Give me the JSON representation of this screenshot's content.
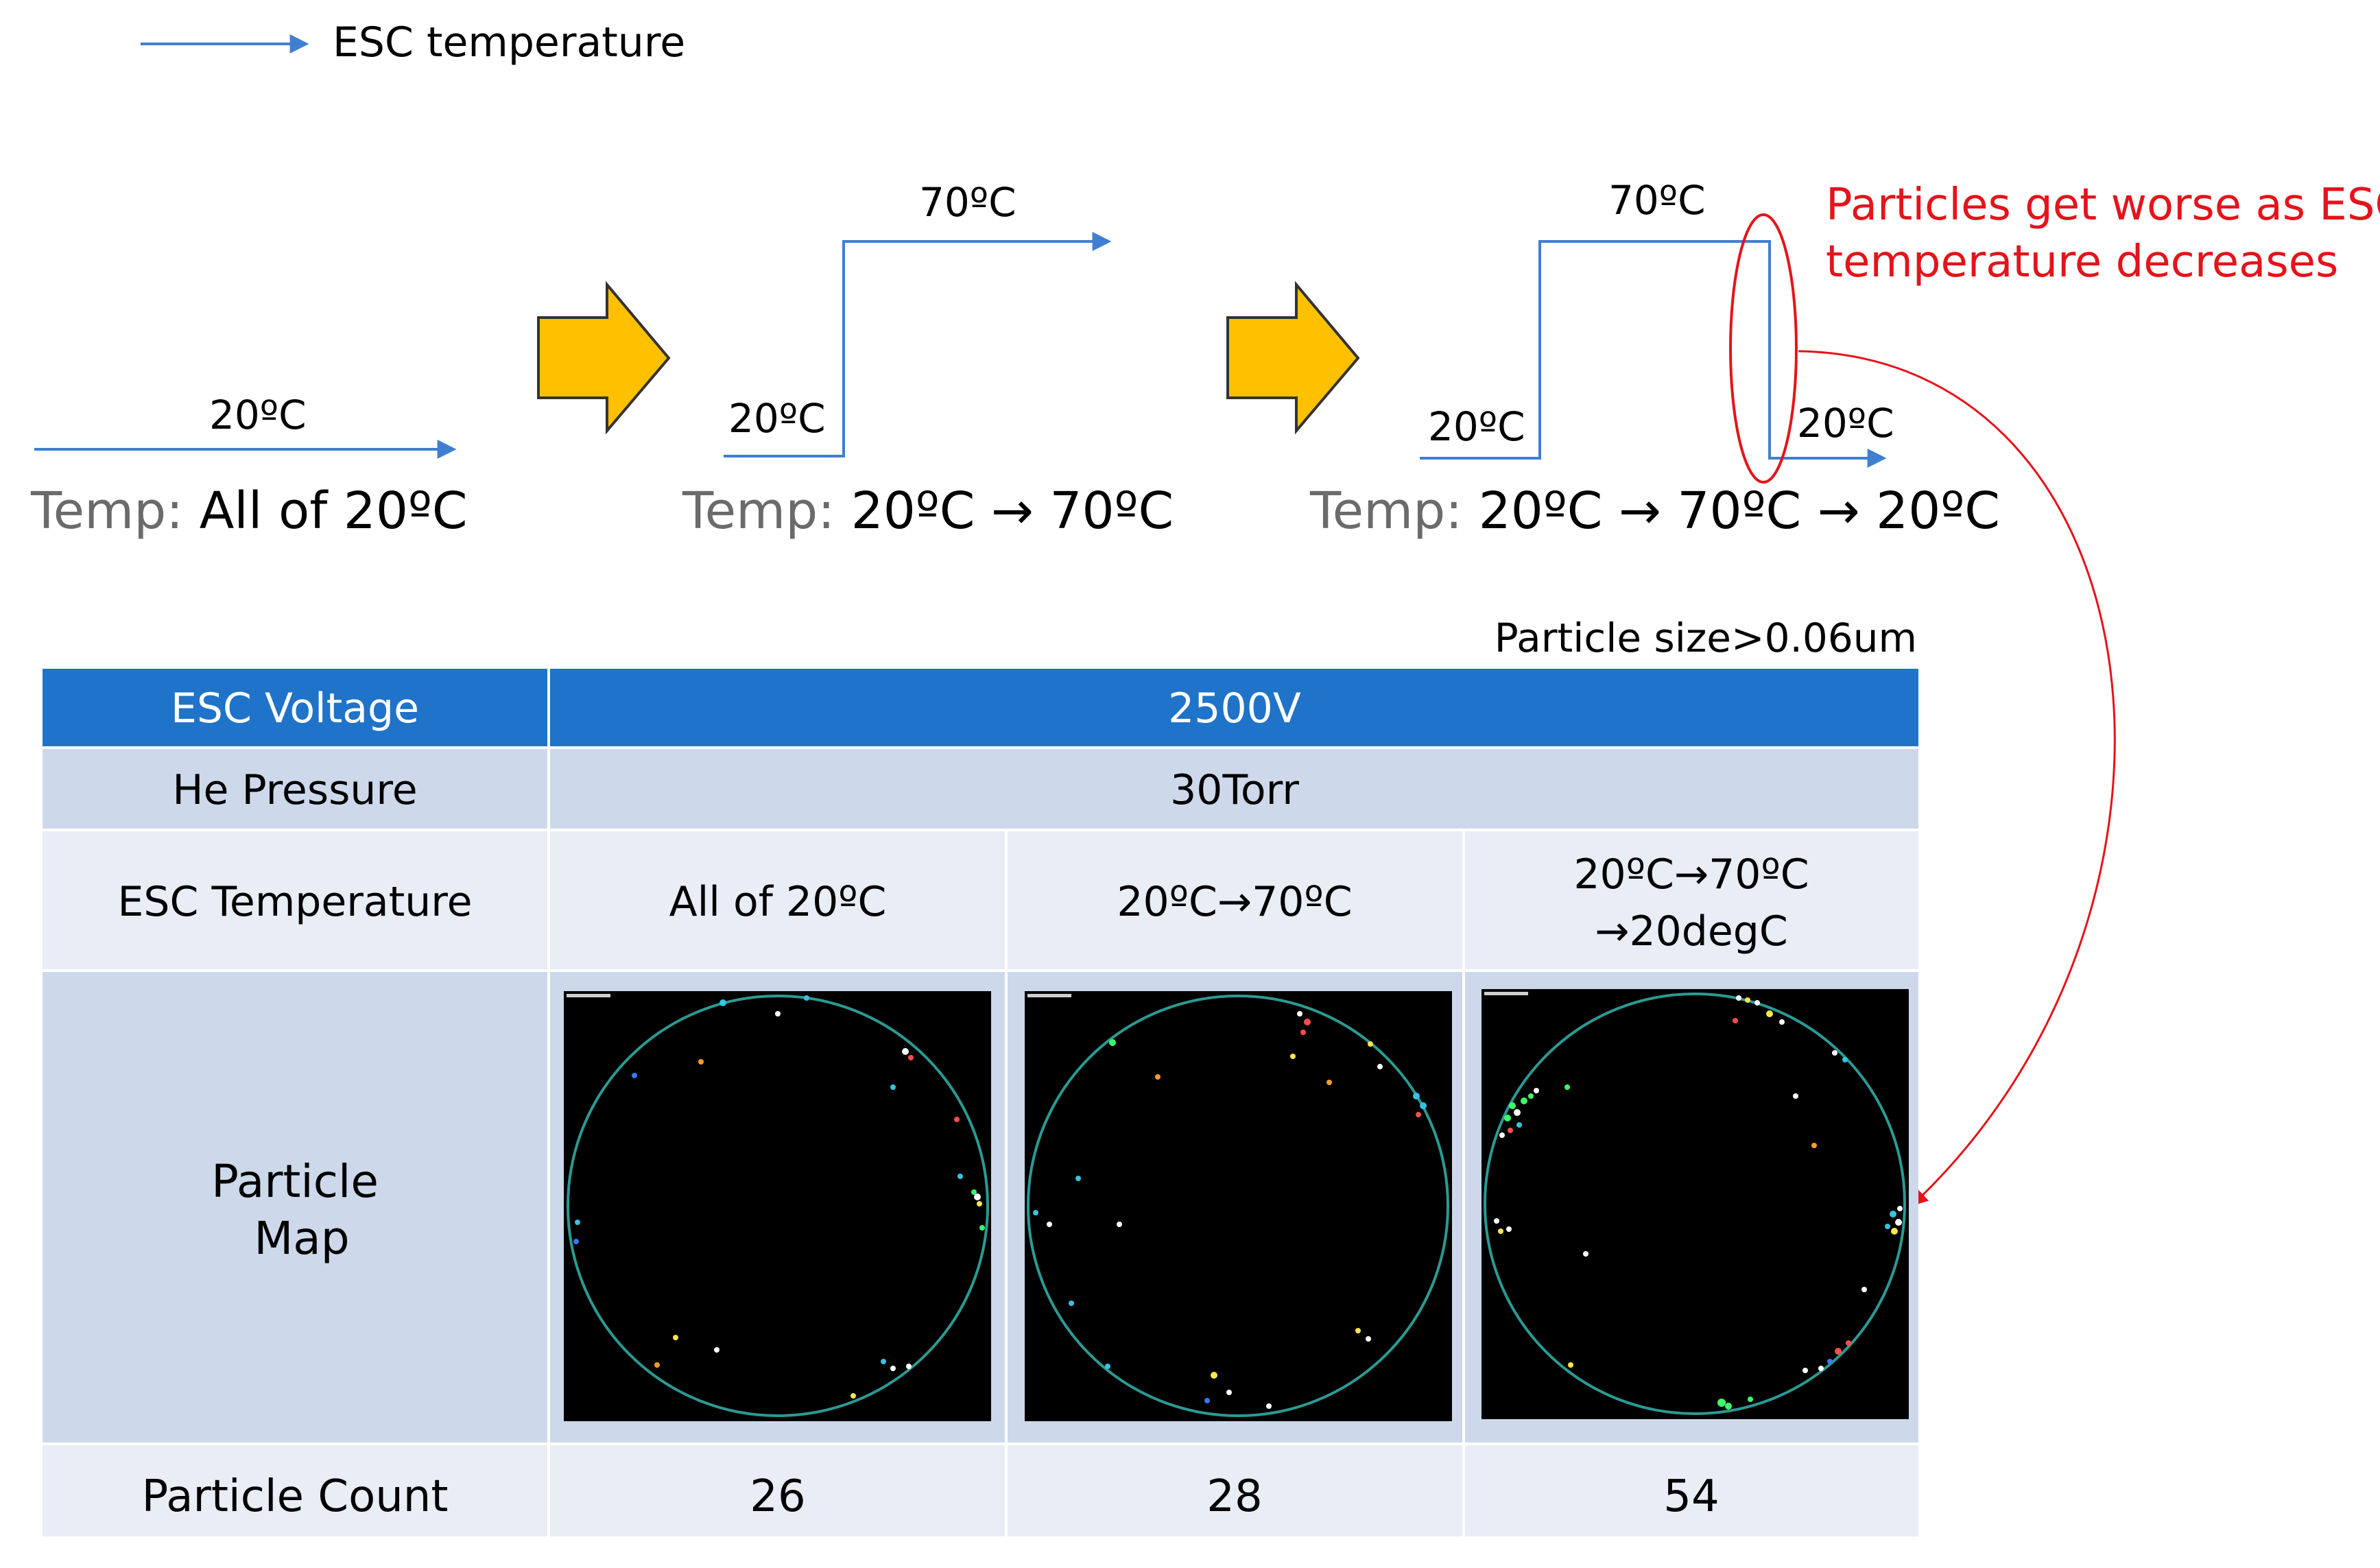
{
  "legend": {
    "label": "ESC temperature"
  },
  "profiles": [
    {
      "levels": [
        "20ºC"
      ],
      "temp_prefix": "Temp:",
      "temp_value": "All of 20ºC"
    },
    {
      "levels": [
        "20ºC",
        "70ºC"
      ],
      "temp_prefix": "Temp:",
      "temp_value": "20ºC → 70ºC"
    },
    {
      "levels": [
        "20ºC",
        "70ºC",
        "20ºC"
      ],
      "temp_prefix": "Temp:",
      "temp_value": "20ºC → 70ºC → 20ºC"
    }
  ],
  "annotation": {
    "lines": [
      "Particles get worse as ESC",
      "temperature decreases"
    ]
  },
  "particle_size_note": "Particle size>0.06um",
  "table": {
    "esc_voltage": {
      "label": "ESC Voltage",
      "value": "2500V"
    },
    "he_pressure": {
      "label": "He Pressure",
      "value": "30Torr"
    },
    "esc_temperature": {
      "label": "ESC Temperature",
      "values": [
        [
          "All of 20ºC"
        ],
        [
          "20ºC→70ºC"
        ],
        [
          "20ºC→70ºC",
          "→20degC"
        ]
      ]
    },
    "particle_map": {
      "label_lines": [
        "Particle",
        "Map"
      ]
    },
    "particle_count": {
      "label": "Particle Count",
      "values": [
        "26",
        "28",
        "54"
      ]
    }
  },
  "colors": {
    "header_blue": "#1f73c8",
    "row_mid": "#cdd9ea",
    "row_light": "#e8edf6",
    "profile_line": "#3f7fd0",
    "process_arrow": "#ffc000",
    "annotation_red": "#e4141b",
    "wafer_ring": "#2a9a93"
  },
  "icons": {
    "process_step": "block-right-arrow",
    "legend": "right-arrow"
  }
}
